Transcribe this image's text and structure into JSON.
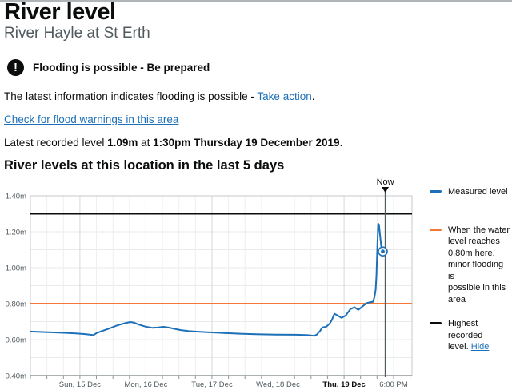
{
  "page": {
    "title": "River level",
    "subtitle": "River Hayle at St Erth",
    "warning_banner": {
      "icon": "exclamation-icon",
      "label": "Flooding is possible - Be prepared"
    },
    "latest_info": {
      "text_before_link": "The latest information indicates flooding is possible - ",
      "link_label": "Take action",
      "text_after_link": "."
    },
    "area_warnings_link_label": "Check for flood warnings in this area",
    "latest_recorded": {
      "text_before_level": "Latest recorded level ",
      "level": "1.09m",
      "text_between": " at ",
      "datetime": "1:30pm Thursday 19 December 2019",
      "text_after": "."
    },
    "section_heading": "River levels at this location in the last 5 days"
  },
  "legend": {
    "items": [
      {
        "color": "#1d70b8",
        "lines": [
          "Measured level"
        ]
      },
      {
        "color": "#f47738",
        "lines": [
          "When the water",
          "level reaches",
          "0.80m here,",
          "minor flooding is",
          "possible in this",
          "area"
        ]
      },
      {
        "color": "#0b0c0c",
        "lines": [
          "Highest recorded",
          "level."
        ],
        "link_label": "Hide"
      }
    ]
  },
  "chart_data": {
    "type": "line",
    "title": "River levels at this location in the last 5 days",
    "x_unit": "hours from Sun 15 Dec 2019 00:00",
    "xlim": [
      -18,
      120.7
    ],
    "ylim": [
      0.4,
      1.4
    ],
    "grid": {
      "minor_step_hours": 6,
      "y_step": 0.1
    },
    "y_ticks": [
      {
        "value": 1.4,
        "label": "1.40m"
      },
      {
        "value": 1.2,
        "label": "1.20m"
      },
      {
        "value": 1.0,
        "label": "1.00m"
      },
      {
        "value": 0.8,
        "label": "0.80m"
      },
      {
        "value": 0.6,
        "label": "0.60m"
      },
      {
        "value": 0.4,
        "label": "0.40m"
      }
    ],
    "x_ticks": [
      {
        "hour": 0,
        "label": "Sun, 15 Dec",
        "bold": false
      },
      {
        "hour": 24,
        "label": "Mon, 16 Dec",
        "bold": false
      },
      {
        "hour": 48,
        "label": "Tue, 17 Dec",
        "bold": false
      },
      {
        "hour": 72,
        "label": "Wed, 18 Dec",
        "bold": false
      },
      {
        "hour": 96,
        "label": "Thu, 19 Dec",
        "bold": true
      },
      {
        "hour": 114,
        "label": "6:00 PM",
        "bold": false
      }
    ],
    "now": {
      "hour": 111,
      "label": "Now"
    },
    "threshold": {
      "value": 0.8,
      "color": "#f47738",
      "meaning": "When the water level reaches 0.80m here, minor flooding is possible in this area"
    },
    "highest_recorded": {
      "value": 1.3,
      "color": "#0b0c0c",
      "meaning": "Highest recorded level"
    },
    "series": [
      {
        "name": "Measured level",
        "color": "#1d70b8",
        "points": [
          [
            -18,
            0.645
          ],
          [
            -11.6,
            0.641
          ],
          [
            -5.8,
            0.638
          ],
          [
            -1.5,
            0.634
          ],
          [
            1.5,
            0.631
          ],
          [
            3.5,
            0.628
          ],
          [
            4.9,
            0.625
          ],
          [
            6.1,
            0.637
          ],
          [
            8.1,
            0.648
          ],
          [
            10.5,
            0.661
          ],
          [
            13.4,
            0.678
          ],
          [
            16.3,
            0.691
          ],
          [
            18.3,
            0.698
          ],
          [
            19.8,
            0.694
          ],
          [
            21.5,
            0.683
          ],
          [
            23.9,
            0.672
          ],
          [
            26.2,
            0.666
          ],
          [
            28.2,
            0.667
          ],
          [
            30.3,
            0.671
          ],
          [
            32,
            0.668
          ],
          [
            34.3,
            0.66
          ],
          [
            36.7,
            0.653
          ],
          [
            39.6,
            0.647
          ],
          [
            43.6,
            0.643
          ],
          [
            48,
            0.64
          ],
          [
            52.4,
            0.637
          ],
          [
            58.2,
            0.633
          ],
          [
            64,
            0.63
          ],
          [
            71.3,
            0.628
          ],
          [
            78.5,
            0.627
          ],
          [
            82.9,
            0.625
          ],
          [
            85.2,
            0.621
          ],
          [
            86.1,
            0.628
          ],
          [
            87.3,
            0.648
          ],
          [
            88.1,
            0.668
          ],
          [
            89.6,
            0.672
          ],
          [
            90.8,
            0.69
          ],
          [
            91.6,
            0.71
          ],
          [
            92.5,
            0.744
          ],
          [
            93.7,
            0.734
          ],
          [
            95.1,
            0.721
          ],
          [
            96.6,
            0.734
          ],
          [
            98.3,
            0.77
          ],
          [
            99.8,
            0.78
          ],
          [
            101.2,
            0.766
          ],
          [
            103,
            0.788
          ],
          [
            104.2,
            0.803
          ],
          [
            105.3,
            0.807
          ],
          [
            106.5,
            0.81
          ],
          [
            107.1,
            0.838
          ],
          [
            107.5,
            0.88
          ],
          [
            107.8,
            0.96
          ],
          [
            108.1,
            1.12
          ],
          [
            108.4,
            1.245
          ],
          [
            108.7,
            1.24
          ],
          [
            109.1,
            1.18
          ],
          [
            109.5,
            1.12
          ],
          [
            110.1,
            1.09
          ]
        ]
      }
    ],
    "latest_point": {
      "hour": 110.1,
      "value": 1.09
    }
  }
}
